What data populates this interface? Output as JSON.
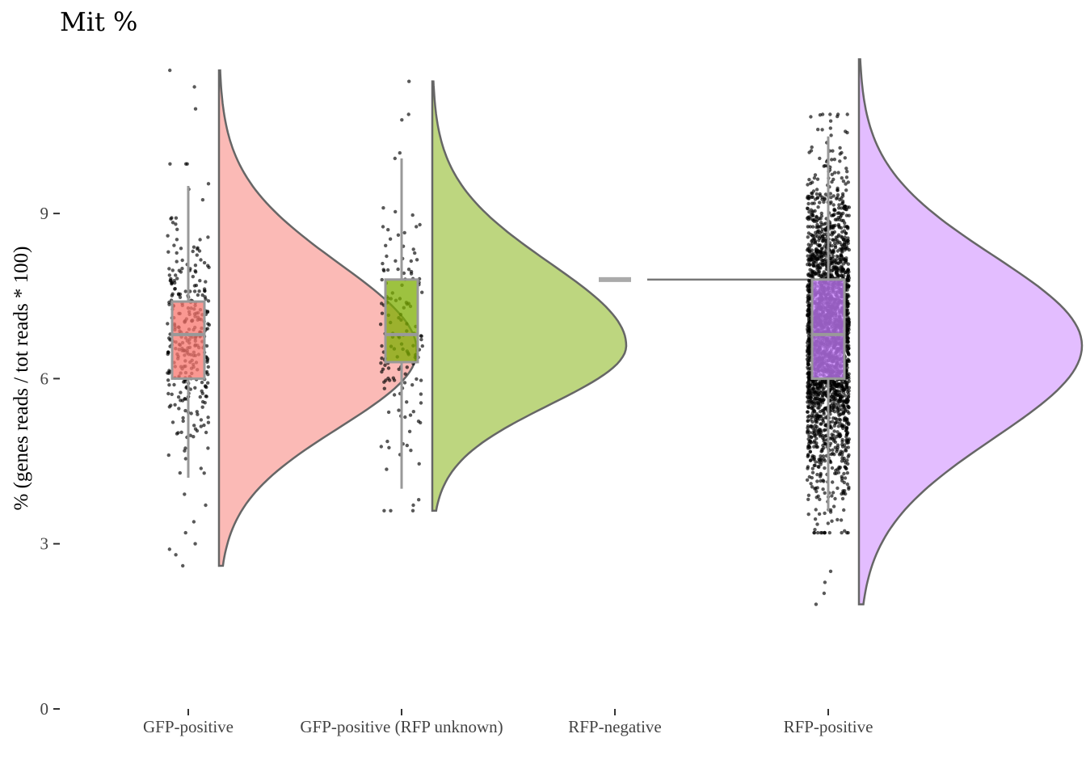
{
  "chart_data": {
    "type": "raincloud",
    "title": "Mit %",
    "ylabel": "% (genes reads / tot reads * 100)",
    "xlabel": "",
    "ylim": [
      0,
      11.8
    ],
    "yticks": [
      0,
      3,
      6,
      9
    ],
    "grid": false,
    "legend": "none",
    "categories": [
      "GFP-positive",
      "GFP-positive (RFP unknown)",
      "RFP-negative",
      "RFP-positive"
    ],
    "series": [
      {
        "category": "GFP-positive",
        "color": "#f8766d",
        "box": {
          "whisker_low": 4.2,
          "q1": 6.0,
          "median": 6.8,
          "q3": 7.4,
          "whisker_high": 9.5
        },
        "density": {
          "y_min": 2.6,
          "y_max": 11.6,
          "mode": 6.5,
          "peak_width_fraction": 0.77
        },
        "points": {
          "count": 320,
          "outliers": [
            11.6,
            11.3,
            10.9,
            9.9,
            3.9,
            3.7,
            3.4,
            3.2,
            3.0,
            2.9,
            2.8,
            2.6
          ]
        }
      },
      {
        "category": "GFP-positive (RFP unknown)",
        "color": "#7cae00",
        "box": {
          "whisker_low": 4.0,
          "q1": 6.3,
          "median": 6.8,
          "q3": 7.8,
          "whisker_high": 10.0
        },
        "density": {
          "y_min": 3.6,
          "y_max": 11.4,
          "mode": 6.6,
          "peak_width_fraction": 0.75
        },
        "points": {
          "count": 140,
          "outliers": [
            11.4,
            10.8,
            10.7,
            10.1,
            10.0,
            3.8,
            3.7,
            3.6
          ]
        }
      },
      {
        "category": "RFP-negative",
        "color": "#aaaaaa",
        "box": {
          "whisker_low": 7.8,
          "q1": 7.8,
          "median": 7.8,
          "q3": 7.8,
          "whisker_high": 7.8
        },
        "density": null,
        "points": {
          "count": 1,
          "outliers": []
        }
      },
      {
        "category": "RFP-positive",
        "color": "#c77cff",
        "box": {
          "whisker_low": 3.6,
          "q1": 6.0,
          "median": 6.8,
          "q3": 7.8,
          "whisker_high": 10.4
        },
        "density": {
          "y_min": 1.9,
          "y_max": 11.8,
          "mode": 6.6,
          "peak_width_fraction": 0.9
        },
        "points": {
          "count": 2600,
          "outliers": [
            2.5,
            2.3,
            2.1,
            1.9
          ]
        }
      }
    ]
  }
}
